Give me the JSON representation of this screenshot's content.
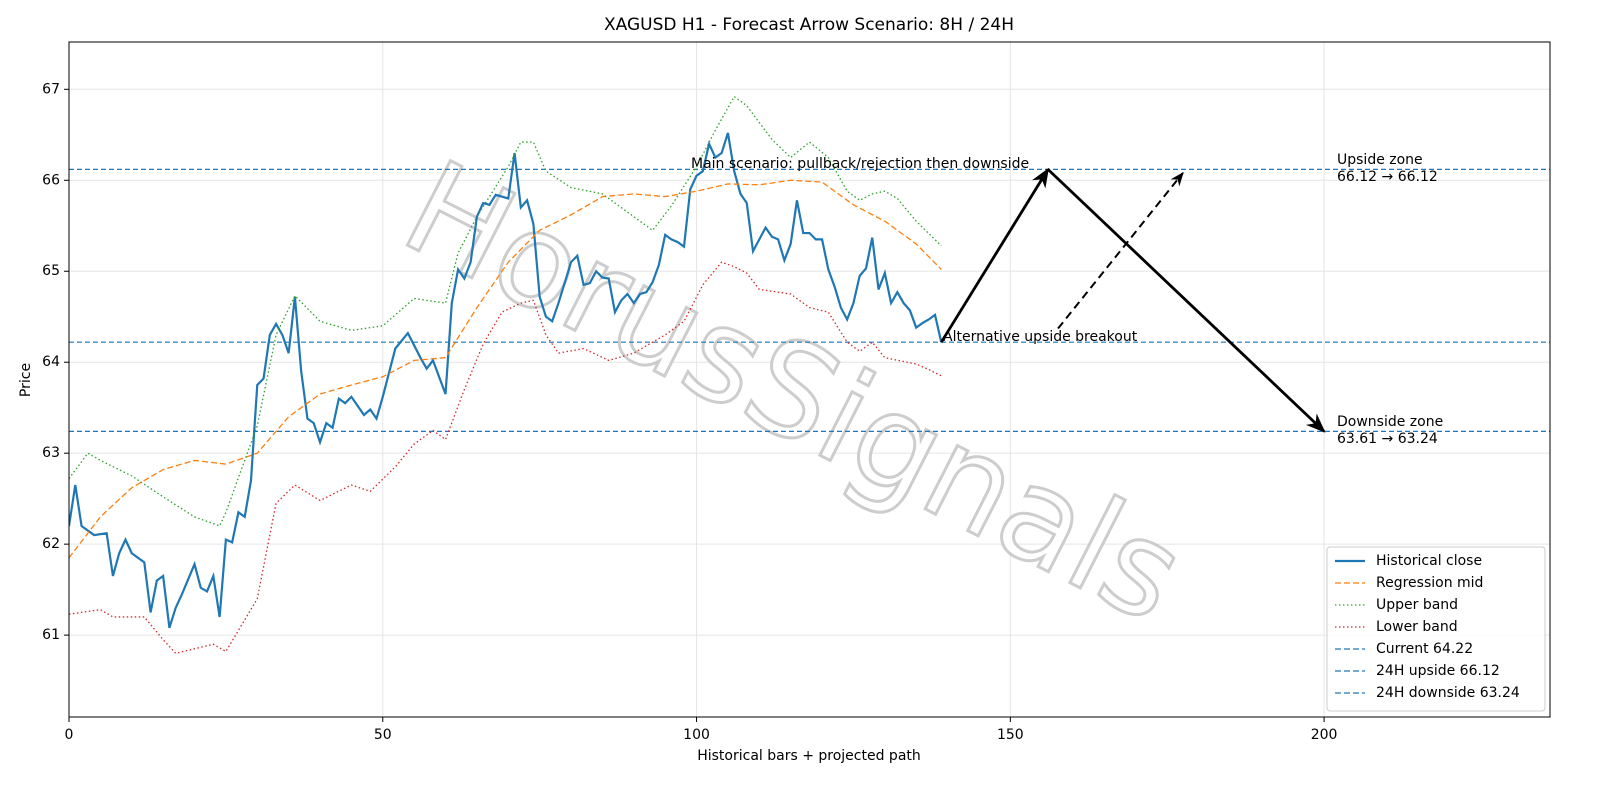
{
  "chart_data": {
    "type": "line",
    "title": "XAGUSD H1 - Forecast Arrow Scenario: 8H / 24H",
    "x_label": "Historical bars + projected path",
    "y_label": "Price",
    "xlim": [
      0,
      236
    ],
    "ylim": [
      60.1,
      67.52
    ],
    "xticks": [
      0,
      50,
      100,
      150,
      200
    ],
    "yticks": [
      61,
      62,
      63,
      64,
      65,
      66,
      67
    ],
    "grid": true,
    "legend": "lower right",
    "watermark": "HorusSignals",
    "series": [
      {
        "name": "Historical close",
        "color": "#1f77b4",
        "style": "solid",
        "x": [
          0,
          1,
          2,
          4,
          6,
          7,
          8,
          9,
          10,
          12,
          13,
          14,
          15,
          16,
          17,
          18,
          20,
          21,
          22,
          23,
          24,
          25,
          26,
          27,
          28,
          29,
          30,
          31,
          32,
          33,
          34,
          35,
          36,
          37,
          38,
          39,
          40,
          41,
          42,
          43,
          44,
          45,
          47,
          48,
          49,
          50,
          52,
          54,
          56,
          57,
          58,
          60,
          61,
          62,
          63,
          64,
          65,
          66,
          67,
          68,
          70,
          71,
          72,
          73,
          74,
          75,
          76,
          77,
          78,
          80,
          81,
          82,
          83,
          84,
          85,
          86,
          87,
          88,
          89,
          90,
          91,
          92,
          93,
          94,
          95,
          96,
          97,
          98,
          99,
          100,
          101,
          102,
          103,
          104,
          105,
          106,
          107,
          108,
          109,
          110,
          111,
          112,
          113,
          114,
          115,
          116,
          117,
          118,
          119,
          120,
          121,
          122,
          123,
          124,
          125,
          126,
          127,
          128,
          129,
          130,
          131,
          132,
          133,
          134,
          135,
          136,
          137,
          138,
          139
        ],
        "values": [
          62.2,
          62.65,
          62.2,
          62.1,
          62.12,
          61.65,
          61.9,
          62.05,
          61.9,
          61.8,
          61.25,
          61.6,
          61.65,
          61.08,
          61.3,
          61.45,
          61.78,
          61.52,
          61.48,
          61.65,
          61.2,
          62.05,
          62.02,
          62.35,
          62.3,
          62.7,
          63.75,
          63.82,
          64.3,
          64.42,
          64.3,
          64.1,
          64.72,
          63.9,
          63.38,
          63.33,
          63.12,
          63.33,
          63.28,
          63.6,
          63.55,
          63.62,
          63.42,
          63.48,
          63.38,
          63.62,
          64.15,
          64.32,
          64.05,
          63.93,
          64.02,
          63.65,
          64.65,
          65.02,
          64.92,
          65.1,
          65.6,
          65.75,
          65.73,
          65.84,
          65.8,
          66.3,
          65.7,
          65.78,
          65.52,
          64.72,
          64.5,
          64.45,
          64.65,
          65.1,
          65.17,
          64.85,
          64.87,
          65.0,
          64.93,
          64.92,
          64.55,
          64.68,
          64.75,
          64.65,
          64.75,
          64.77,
          64.88,
          65.07,
          65.4,
          65.35,
          65.32,
          65.27,
          65.9,
          66.05,
          66.1,
          66.4,
          66.25,
          66.3,
          66.52,
          66.1,
          65.85,
          65.75,
          65.22,
          65.35,
          65.48,
          65.38,
          65.35,
          65.12,
          65.3,
          65.78,
          65.42,
          65.42,
          65.35,
          65.35,
          65.02,
          64.83,
          64.6,
          64.47,
          64.65,
          64.95,
          65.03,
          65.37,
          64.8,
          64.98,
          64.65,
          64.77,
          64.65,
          64.57,
          64.38,
          64.43,
          64.47,
          64.52,
          64.22
        ]
      },
      {
        "name": "Regression mid",
        "color": "#ff7f0e",
        "style": "dashed",
        "x": [
          0,
          5,
          10,
          15,
          20,
          25,
          30,
          35,
          40,
          45,
          50,
          55,
          60,
          65,
          70,
          75,
          80,
          85,
          90,
          95,
          100,
          105,
          110,
          115,
          120,
          125,
          130,
          135,
          139
        ],
        "values": [
          61.85,
          62.3,
          62.62,
          62.82,
          62.92,
          62.88,
          63.0,
          63.4,
          63.65,
          63.75,
          63.84,
          64.02,
          64.05,
          64.6,
          65.1,
          65.45,
          65.62,
          65.82,
          65.85,
          65.82,
          65.88,
          65.96,
          65.95,
          66.0,
          65.98,
          65.73,
          65.55,
          65.3,
          65.02
        ]
      },
      {
        "name": "Upper band",
        "color": "#2ca02c",
        "style": "dotted",
        "x": [
          0,
          3,
          5,
          10,
          15,
          20,
          24,
          25,
          30,
          33,
          36,
          40,
          45,
          50,
          55,
          60,
          62,
          65,
          70,
          72,
          74,
          76,
          80,
          85,
          90,
          93,
          96,
          100,
          103,
          106,
          108,
          112,
          115,
          118,
          121,
          124,
          126,
          128,
          130,
          132,
          135,
          139
        ],
        "values": [
          62.72,
          63.0,
          62.92,
          62.75,
          62.52,
          62.3,
          62.2,
          62.35,
          63.3,
          64.3,
          64.73,
          64.45,
          64.35,
          64.4,
          64.7,
          64.65,
          65.2,
          65.6,
          66.15,
          66.42,
          66.42,
          66.1,
          65.92,
          65.85,
          65.6,
          65.45,
          65.72,
          66.15,
          66.55,
          66.92,
          66.82,
          66.45,
          66.25,
          66.42,
          66.25,
          65.88,
          65.78,
          65.85,
          65.88,
          65.8,
          65.55,
          65.28
        ]
      },
      {
        "name": "Lower band",
        "color": "#d62728",
        "style": "dotted",
        "x": [
          0,
          5,
          7,
          12,
          15,
          17,
          20,
          23,
          25,
          30,
          33,
          36,
          40,
          45,
          48,
          52,
          55,
          58,
          60,
          63,
          66,
          69,
          72,
          74,
          76,
          78,
          82,
          86,
          90,
          95,
          98,
          101,
          104,
          106,
          108,
          110,
          115,
          118,
          121,
          124,
          126,
          128,
          130,
          135,
          137,
          139
        ],
        "values": [
          61.23,
          61.28,
          61.2,
          61.2,
          60.95,
          60.8,
          60.85,
          60.9,
          60.82,
          61.4,
          62.45,
          62.65,
          62.48,
          62.65,
          62.58,
          62.85,
          63.1,
          63.25,
          63.15,
          63.7,
          64.2,
          64.55,
          64.65,
          64.68,
          64.3,
          64.1,
          64.15,
          64.02,
          64.1,
          64.3,
          64.45,
          64.85,
          65.1,
          65.05,
          64.98,
          64.8,
          64.75,
          64.6,
          64.55,
          64.22,
          64.12,
          64.22,
          64.05,
          63.98,
          63.92,
          63.85
        ]
      }
    ],
    "hlines": [
      {
        "name": "Current 64.22",
        "value": 64.22,
        "color": "#1f77b4"
      },
      {
        "name": "24H upside 66.12",
        "value": 66.12,
        "color": "#1f77b4"
      },
      {
        "name": "24H downside 63.24",
        "value": 63.24,
        "color": "#1f77b4"
      }
    ],
    "arrows": [
      {
        "style": "solid",
        "x": [
          139,
          156,
          200
        ],
        "y": [
          64.22,
          66.12,
          63.24
        ]
      },
      {
        "style": "dashed",
        "x": [
          157.6,
          177.5
        ],
        "y": [
          64.37,
          66.08
        ]
      }
    ],
    "annotations": [
      "Main scenario: pullback/rejection then downside",
      "Alternative upside breakout",
      "Upside zone",
      "66.12 → 66.12",
      "Downside zone",
      "63.61 → 63.24"
    ]
  }
}
